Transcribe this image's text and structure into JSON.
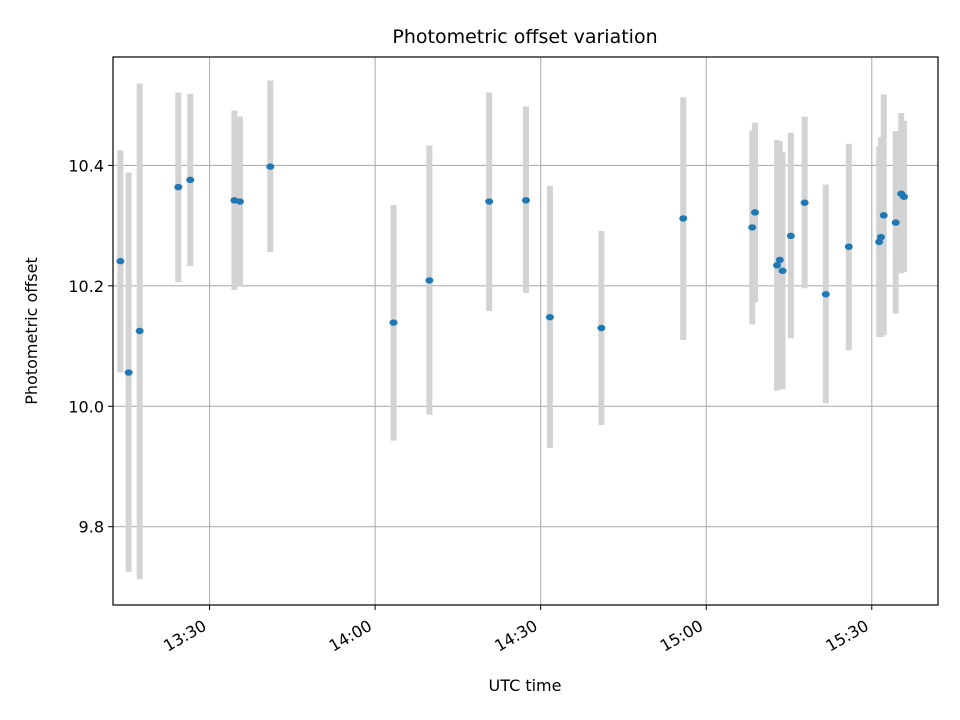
{
  "chart_data": {
    "type": "scatter",
    "title": "Photometric offset variation",
    "xlabel": "UTC time",
    "ylabel": "Photometric offset",
    "x_axis": "time",
    "xlim": [
      "13:12:30",
      "15:42:00"
    ],
    "ylim": [
      9.67,
      10.58
    ],
    "x_ticks": [
      {
        "time": "13:30",
        "label": "13:30"
      },
      {
        "time": "14:00",
        "label": "14:00"
      },
      {
        "time": "14:30",
        "label": "14:30"
      },
      {
        "time": "15:00",
        "label": "15:00"
      },
      {
        "time": "15:30",
        "label": "15:30"
      }
    ],
    "y_ticks": [
      {
        "value": 9.8,
        "label": "9.8"
      },
      {
        "value": 10.0,
        "label": "10.0"
      },
      {
        "value": 10.2,
        "label": "10.2"
      },
      {
        "value": 10.4,
        "label": "10.4"
      }
    ],
    "grid": true,
    "colors": {
      "marker": "#1f77b4",
      "errorbar": "#d3d3d3",
      "grid": "#b0b0b0"
    },
    "series": [
      {
        "points": [
          {
            "x": "13:13:50",
            "y": 10.241,
            "low": 10.056,
            "high": 10.425
          },
          {
            "x": "13:15:20",
            "y": 10.056,
            "low": 9.725,
            "high": 10.388
          },
          {
            "x": "13:17:20",
            "y": 10.125,
            "low": 9.713,
            "high": 10.536
          },
          {
            "x": "13:24:20",
            "y": 10.364,
            "low": 10.206,
            "high": 10.521
          },
          {
            "x": "13:26:30",
            "y": 10.376,
            "low": 10.233,
            "high": 10.519
          },
          {
            "x": "13:34:30",
            "y": 10.342,
            "low": 10.193,
            "high": 10.491
          },
          {
            "x": "13:35:30",
            "y": 10.34,
            "low": 10.2,
            "high": 10.481
          },
          {
            "x": "13:41:00",
            "y": 10.398,
            "low": 10.256,
            "high": 10.541
          },
          {
            "x": "14:03:20",
            "y": 10.139,
            "low": 9.943,
            "high": 10.334
          },
          {
            "x": "14:09:50",
            "y": 10.209,
            "low": 9.986,
            "high": 10.433
          },
          {
            "x": "14:20:40",
            "y": 10.34,
            "low": 10.158,
            "high": 10.521
          },
          {
            "x": "14:27:20",
            "y": 10.342,
            "low": 10.188,
            "high": 10.498
          },
          {
            "x": "14:31:40",
            "y": 10.148,
            "low": 9.931,
            "high": 10.366
          },
          {
            "x": "14:41:00",
            "y": 10.13,
            "low": 9.969,
            "high": 10.291
          },
          {
            "x": "14:55:50",
            "y": 10.312,
            "low": 10.11,
            "high": 10.513
          },
          {
            "x": "15:08:20",
            "y": 10.297,
            "low": 10.136,
            "high": 10.458
          },
          {
            "x": "15:08:50",
            "y": 10.322,
            "low": 10.173,
            "high": 10.471
          },
          {
            "x": "15:12:50",
            "y": 10.234,
            "low": 10.026,
            "high": 10.442
          },
          {
            "x": "15:13:20",
            "y": 10.243,
            "low": 10.046,
            "high": 10.44
          },
          {
            "x": "15:13:50",
            "y": 10.225,
            "low": 10.028,
            "high": 10.422
          },
          {
            "x": "15:15:20",
            "y": 10.283,
            "low": 10.113,
            "high": 10.454
          },
          {
            "x": "15:17:50",
            "y": 10.338,
            "low": 10.196,
            "high": 10.481
          },
          {
            "x": "15:21:40",
            "y": 10.186,
            "low": 10.005,
            "high": 10.368
          },
          {
            "x": "15:25:50",
            "y": 10.265,
            "low": 10.093,
            "high": 10.436
          },
          {
            "x": "15:31:20",
            "y": 10.273,
            "low": 10.115,
            "high": 10.432
          },
          {
            "x": "15:31:40",
            "y": 10.281,
            "low": 10.115,
            "high": 10.447
          },
          {
            "x": "15:32:10",
            "y": 10.317,
            "low": 10.118,
            "high": 10.518
          },
          {
            "x": "15:34:20",
            "y": 10.305,
            "low": 10.154,
            "high": 10.457
          },
          {
            "x": "15:35:20",
            "y": 10.353,
            "low": 10.221,
            "high": 10.487
          },
          {
            "x": "15:35:50",
            "y": 10.348,
            "low": 10.223,
            "high": 10.474
          }
        ]
      }
    ]
  }
}
